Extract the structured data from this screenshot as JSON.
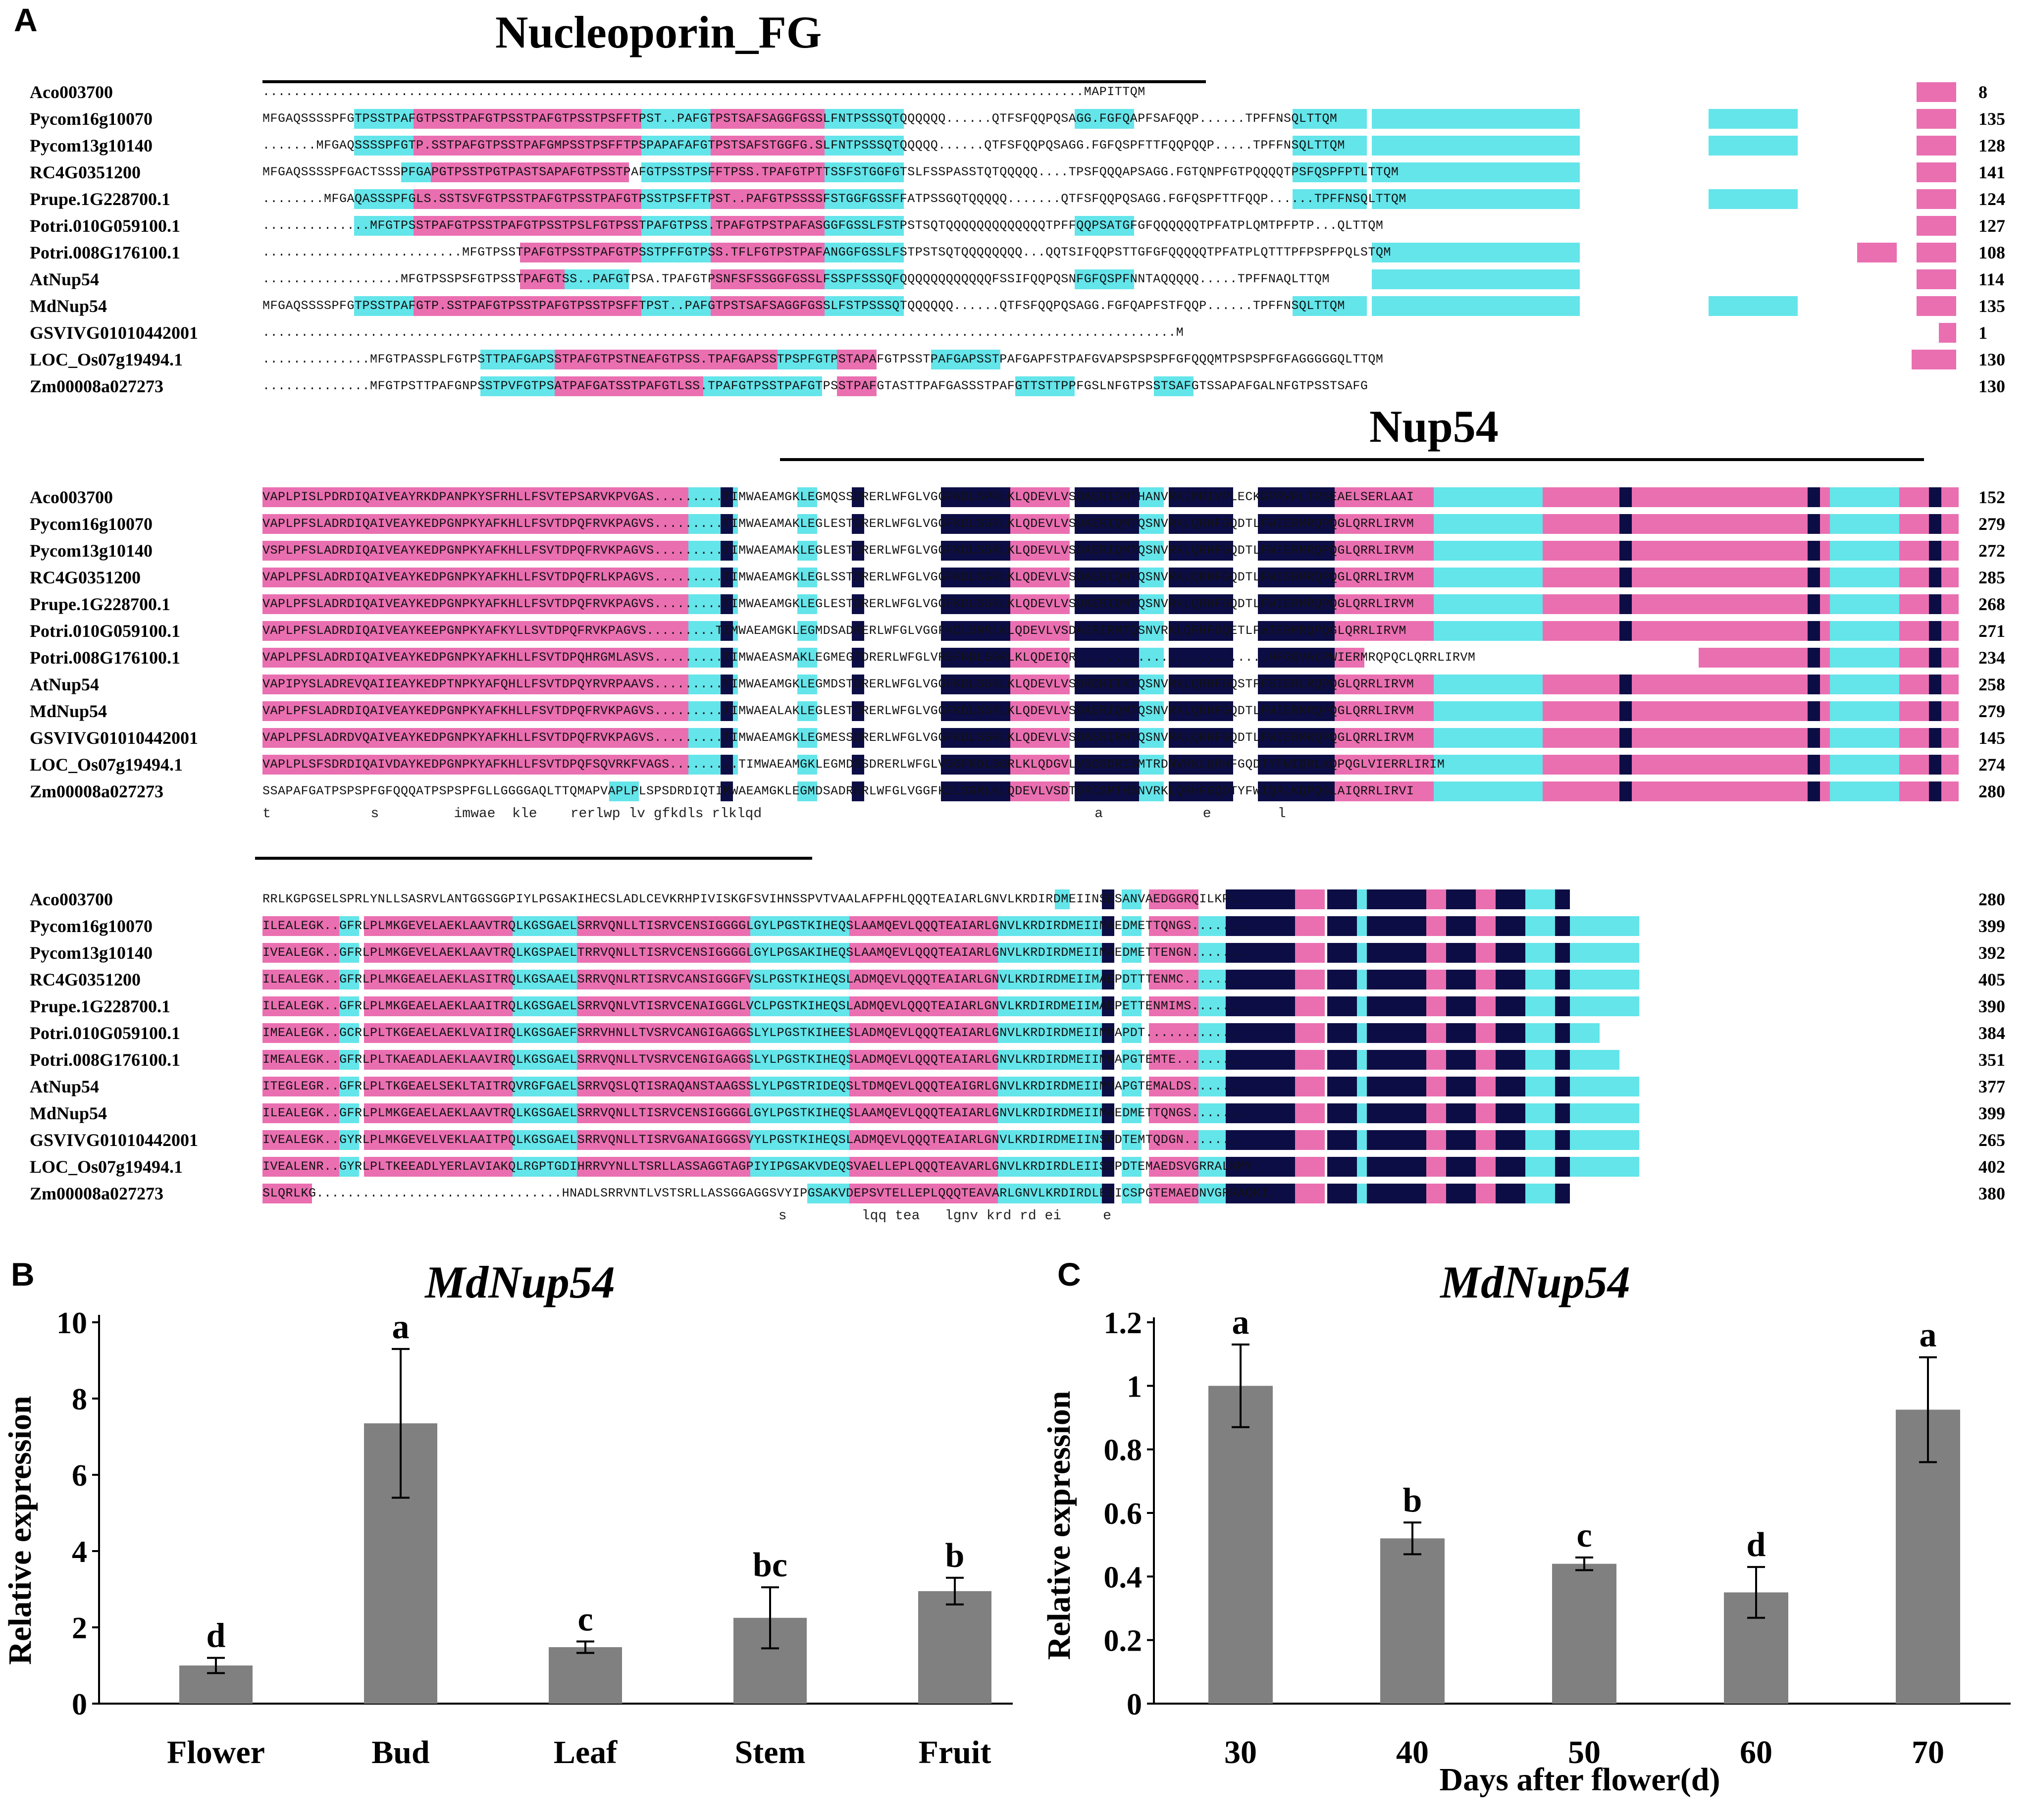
{
  "panels": {
    "a": "A",
    "b": "B",
    "c": "C"
  },
  "alignment": {
    "domain1_title": "Nucleoporin_FG",
    "domain2_title": "Nup54",
    "blocks": [
      {
        "rows": [
          {
            "name": "Aco003700",
            "end": "8",
            "seq": "...........................................................................................................MAPITTQM"
          },
          {
            "name": "Pycom16g10070",
            "end": "135",
            "seq": "MFGAQSSSSPFGTPSSTPAFGTPSSTPAFGTPSSTPAFGTPSSTPSFFTPST..PAFGTPSTSAFSAGGFGSSLFNTPSSSQTQQQQQQ......QTFSFQQPQSAGG.FGFQAPFSAFQQP......TPFFNSQLTTQM"
          },
          {
            "name": "Pycom13g10140",
            "end": "128",
            "seq": ".......MFGAQSSSSPFGTP.SSTPAFGTPSSTPAFGMPSSTPSFFTPSPAPAFAFGTPSTSAFSTGGFG.SLFNTPSSSQTQQQQQ......QTFSFQQPQSAGG.FGFQSPFTTFQQPQQP.....TPFFNSQLTTQM"
          },
          {
            "name": "RC4G0351200",
            "end": "141",
            "seq": "MFGAQSSSSPFGACTSSSPFGAPGTPSSTPGTPASTSAPAFGTPSSTPAFGTPSSTPSFFTPSS.TPAFGTPTTSSFSTGGFGTSLFSSPASSTQTQQQQQ....TPSFQQQAPSAGG.FGTQNPFGTPQQQQTPSFQSPFPTLTTQM"
          },
          {
            "name": "Prupe.1G228700.1",
            "end": "124",
            "seq": "........MFGAQASSSPFGLS.SSTSVFGTPSSTPAFGTPSSTPAFGTPSSTPSFFTPST..PAFGTPSSSSFSTGGFGSSFFATPSSGQTQQQQQ.......QTFSFQQPQSAGG.FGFQSPFTTFQQP......TPFFNSQLTTQM"
          },
          {
            "name": "Potri.010G059100.1",
            "end": "127",
            "seq": "..............MFGTPSSTPAFGTPSSTPAFGTPSSTPSLFGTPSSTPAFGTPSS.TPAFGTPSTPAFASGGFGSSLFSTPSTSQTQQQQQQQQQQQQQTPFFQQPSATGFGFQQQQQQTPFATPLQMTPFPTP...QLTTQM"
          },
          {
            "name": "Potri.008G176100.1",
            "end": "108",
            "seq": "..........................MFGTPSSTPAFGTPSSTPAFGTPSSTPFFGTPSS.TFLFGTPSTPAFANGGFGSSLFSTPSTSQTQQQQQQQQ...QQTSIFQQPSTTGFGFQQQQQTPFATPLQTTTPFPSPFPQLSTQM"
          },
          {
            "name": "AtNup54",
            "end": "114",
            "seq": "..................MFGTPSSPSFGTPSSTPAFGTSS..PAFGTPSA.TPAFGTPSNFSFSSGGFGSSLFSSPFSSSQFQQQQQQQQQQQQFSSIFQQPQSNFGFQSPFNNTAQQQQQ.....TPFFNAQLTTQM"
          },
          {
            "name": "MdNup54",
            "end": "135",
            "seq": "MFGAQSSSSPFGTPSSTPAFGTP.SSTPAFGTPSSTPAFGTPSSTPSFFTPST..PAFGTPSTSAFSAGGFGSSLFSTPSSSQTQQQQQQ......QTFSFQQPQSAGG.FGFQAPFSTFQQP......TPFFNSQLTTQM"
          },
          {
            "name": "GSVIVG01010442001",
            "end": "1",
            "seq": ".......................................................................................................................M"
          },
          {
            "name": "LOC_Os07g19494.1",
            "end": "130",
            "seq": "..............MFGTPASSPLFGTPSTTPAFGAPSSTPAFGTPSTNEAFGTPSS.TPAFGAPSSTPSPFGTPSTAPAFGTPSSTPAFGAPSSTPAFGAPFSTPAFGVAPSPSPSPFGFQQQMTPSPSPFGFAGGGGGQLTTQM"
          },
          {
            "name": "Zm00008a027273",
            "end": "130",
            "seq": "..............MFGTPSTTPAFGNPSSTPVFGTPSATPAFGATSSTPAFGTLSS.TPAFGTPSSTPAFGTPSSTPAFGTASTTPAFGASSSTPAFGTTSTTPPFGSLNFGTPSSTSAFGTSSAPAFGALNFGTPSSTSAFG"
          }
        ],
        "consensus": ""
      },
      {
        "rows": [
          {
            "name": "Aco003700",
            "end": "152",
            "seq": "VAPLPISLPDRDIQAIVEAYRKDPANPKYSFRHLLFSVTEPSARVKPVGAS.........TIMWAEAMGKLEGMQSSDRERLWFGLVGGFKDLSPRLKLQDEVLVSDAERISMTHANVRKIMRIVPLECKGPRVPLTRSEAELSERLAAI"
          },
          {
            "name": "Pycom16g10070",
            "end": "279",
            "seq": "VAPLPFSLADRDIQAIVEAYKEDPGNPKYAFKHLLFSVTDPQFRVKPAGVS.........TIMWAEAMAKLEGLESTDRERLWFGLVGGFKDLSGRLKLQDEVLVSDAERIQMTQSNVRKLQRHFGQDTLFWIERMRQPQGLQRRLIRVM"
          },
          {
            "name": "Pycom13g10140",
            "end": "272",
            "seq": "VSPLPFSLADRDIQAIVEAYKEDPGNPKYAFKHLLFSVTDPQFRVKPAGVS.........TIMWAEAMAKLEGLESTDRERLWFGLVGGFKDLSGRLKLQDEVLVSDAERIQMTQSNVRKLQRHFGQDTLFWIERMRQPQGLQRRLIRVM"
          },
          {
            "name": "RC4G0351200",
            "end": "285",
            "seq": "VAPLPFSLADRDIQAIVEAYKEDPGNPKYAFKHLLFSVTDPQFRLKPAGVS.........TIMWAEAMGKLEGLSSTDRERLWFGLVGGFKDLSGRLKLQDEVLVSDAERIQMTQSNVRKLQRHFGQDTLFWIERMRQPQGLQRRLIRVM"
          },
          {
            "name": "Prupe.1G228700.1",
            "end": "268",
            "seq": "VAPLPFSLADRDIQAIVEAYKEDPGNPKYAFKHLLFSVTDPQFRVKPAGVS.........TIMWAEAMGKLEGLESTDRERLWFGLVGGFKDLSGRLKLQDEVLVSDAERIQMTQSNVRKLQRHFGQDTLFWIERMRQPQGLQRRLIRVM"
          },
          {
            "name": "Potri.010G059100.1",
            "end": "271",
            "seq": "VAPLPFSLADRDIQAIVEAYKEEPGNPKYAFKYLLSVTDPQFRVKPAGVS.........TIMWAEAMGKLEGMDSADRERLWFGLVGGFKDLSNRLKLQDEVLVSDAERIRMTQSNVRKLQRHFGQETLFWIERMRQPQGLQRRLIRVM"
          },
          {
            "name": "Potri.008G176100.1",
            "end": "234",
            "seq": "VAPLPFSLADRDIQAIVEAYKEDPGNPKYAFKHLLFSVTDPQHRGMLASVS.........TIMWAEASMAKLEGMEGTDRERLWFGLVRGFKDLSGRLKLQDEIQR.........................HFGQVALPWIERMRQPQCLQRRLIRVM"
          },
          {
            "name": "AtNup54",
            "end": "258",
            "seq": "VAPIPYSLADREVQAIIEAYKEDPTNPKYAFQHLLFSVTDPQYRVRPAAVS.........TIMWAEAMGKLEGMDSTDRERLWFGLVGGFKDLSGRLKLQDEVLVSDRDRITKTQSNVRKLQRHFGQSTFFSIERLRQPQGLQRRLIRVM"
          },
          {
            "name": "MdNup54",
            "end": "279",
            "seq": "VAPLPFSLADRDIQAIVEAYKEDPGNPKYAFKHLLFSVTDPQFRVKPAGVS.........TIMWAEALAKLEGLESTDRERLWFGLVGGFKDLSGRLKLQDEVLVSDAERIQMTQSNVRKLQRHFGQDTLFWIERMRQPQGLQRRLIRVM"
          },
          {
            "name": "GSVIVG01010442001",
            "end": "145",
            "seq": "VAPLPFSLADRDVQAIVEAYKEDPGNPKYAFKHLLFSVTDPQFRVKPAGVS.........TIMWAEAMGKLEGMESSDRERLWFGLVGGFKDLSGRLKLQDEVLVSDAERIRMTQSNVRKLQRHFGQDTLFWIERMRQPQGLQRRLIRVM"
          },
          {
            "name": "LOC_Os07g19494.1",
            "end": "274",
            "seq": "VAPLPLSFSDRDIQAIVDAYKEDPGNPKYAFKHLLFSVTDPQFSQVRKFVAGS.........TIMWAEAMGKLEGMDSSDRERLWFGLVGGFKDLSGRLKLQDGVLVSDSDRISMTRDNVRKLQRHFGQDTYFWIQRLKQPQGLVIERRLIRIM"
          },
          {
            "name": "Zm00008a027273",
            "end": "280",
            "seq": "SSAPAFGATPSPSPFGFQQQATPSPSPFGLLGGGGAQLTTQMAPVAPLPLSPSDRDIQTIMWAEAMGKLEGMDSADRERLWFGLVGGFKDLSGRLKLQDEVLVSDTDRISMTHSNVRKLQRHFGQDTYFWIQRLKQPQGLAIQRRLIRVI"
          }
        ],
        "consensus": "t            s         imwae  kle    rerlwp lv gfkdls rlklqd                                        a            e        l"
      },
      {
        "rows": [
          {
            "name": "Aco003700",
            "end": "280",
            "seq": "RRLKGPGSELSPRLYNLLSASRVLANTGGSGGPIYLPGSAKIHECSLADLCEVKRHPIVISKGFSVIHNSSPVTVAALAFPFHLQQQTEAIARLGNVLKRDIRDMEIINSESANVAEDGGRQILKP.."
          },
          {
            "name": "Pycom16g10070",
            "end": "399",
            "seq": "ILEALEGK..GFRLPLMKGEVELAEKLAAVTRQLKGSGAELSRRVQNLLTISRVCENSIGGGGLGYLPGSTKIHEQSLAAMQEVLQQQTEAIARLGNVLKRDIRDMEIIMAEDMETTQNGS......."
          },
          {
            "name": "Pycom13g10140",
            "end": "392",
            "seq": "IVEALEGK..GFRLPLMKGEVELAEKLAAVTRQLKGSPAELTRRVQNLLTISRVCENSIGGGGLGYLPGSAKIHEQSLAAMQEVLQQQTEAIARLGNVLKRDIRDMEIIMAEDMETTENGN......."
          },
          {
            "name": "RC4G0351200",
            "end": "405",
            "seq": "ILEALEGK..GFRLPLMKGEAELAEKLASITRQLKGSAAELSRRVQNLRTISRVCANSIGGGFVSLPGSTKIHEQSLADMQEVLQQQTEAIARLGNVLKRDIRDMEIIMAEPDTTTENMC......."
          },
          {
            "name": "Prupe.1G228700.1",
            "end": "390",
            "seq": "ILEALEGK..GFRLPLMKGEAELAEKLAAITRQLKGSGAELSRRVQNLVTISRVCENAIGGGLVCLPGSTKIHEQSLADMQEVLQQQTEAIARLGNVLKRDIRDMEIIMAEPETTENMIMS......"
          },
          {
            "name": "Potri.010G059100.1",
            "end": "384",
            "seq": "IMEALEGK..GCRLPLTKGEAELAEKLVAIIRQLKGSGAEFSRRVHNLLTVSRVCANGIGAGGSLYLPGSTKIHEESLADMQEVLQQQTEAIARLGNVLKRDIRDMEIIMMAPDT............"
          },
          {
            "name": "Potri.008G176100.1",
            "end": "351",
            "seq": "IMEALEGK..GFRLPLTKAEADLAEKLAAVIRQLKGSGAELSRRVQNLLTVSRVCENGIGAGGSLYLPGSTKIHEQSLADMQEVLQQQTEAIARLGNVLKRDIRDMEIIMMAPGTEMTE........"
          },
          {
            "name": "AtNup54",
            "end": "377",
            "seq": "ITEGLEGR..GFRLPLTKGEAELSEKLTAITRQVRGFGAELSRRVQSLQTISRAQANSTAAGSSLYLPGSTRIDEQSLTDMQEVLQQQTEAIGRLGNVLKRDIRDMEIIMVAPGTEMALDS......"
          },
          {
            "name": "MdNup54",
            "end": "399",
            "seq": "ILEALEGK..GFRLPLMKGEAELAEKLAAVTRQLKGSGAELSRRVQNLLTISRVCENSIGGGGLGYLPGSTKIHEQSLAAMQEVLQQQTEAIARLGNVLKRDIRDMEIIMAEDMETTQNGS......."
          },
          {
            "name": "GSVIVG01010442001",
            "end": "265",
            "seq": "IVEALEGK..GYRLPLMKGEVELVEKLAAITPQLKGSGAELSRRVQNLLTISRVGANAIGGGSVYLPGSTKIHEQSLADMQEVLQQQTEAIARLGNVLKRDIRDMEIINSPDTEMTQDGN......."
          },
          {
            "name": "LOC_Os07g19494.1",
            "end": "402",
            "seq": "IVEALENR..GYRLPLTKEEADLYERLAVIAKQLRGPTGDIHRRVYNLLTSRLLASSAGGTAGPIYIPGSAKVDEQSVAELLEPLQQQTEAVARLGNVLKRDIRDLEIISSPDTEMAEDSVGRRALKMY"
          },
          {
            "name": "Zm00008a027273",
            "end": "380",
            "seq": "SLQRLKG................................HNADLSRRVNTLVSTSRLLASSGGAGGSVYIPGSAKVDEPSVTELLEPLQQQTEAVARLGNVLKRDIRDLEIICSPGTEMAEDNVGRRAQKI."
          }
        ],
        "consensus": "                                                              s         lqq tea   lgnv krd rd ei     e"
      }
    ]
  },
  "chart_data": [
    {
      "type": "bar",
      "title": "MdNup54",
      "xlabel": "",
      "ylabel": "Relative expression",
      "categories": [
        "Flower",
        "Bud",
        "Leaf",
        "Stem",
        "Fruit"
      ],
      "values": [
        1.0,
        7.35,
        1.48,
        2.25,
        2.95
      ],
      "errors": [
        0.2,
        1.95,
        0.15,
        0.8,
        0.35
      ],
      "significance": [
        "d",
        "a",
        "c",
        "bc",
        "b"
      ],
      "ylim": [
        0,
        10
      ],
      "yticks": [
        "0",
        "2",
        "4",
        "6",
        "8",
        "10"
      ]
    },
    {
      "type": "bar",
      "title": "MdNup54",
      "xlabel": "Days after flower(d)",
      "ylabel": "Relative expression",
      "categories": [
        "30",
        "40",
        "50",
        "60",
        "70"
      ],
      "values": [
        1.0,
        0.52,
        0.44,
        0.35,
        0.925
      ],
      "errors": [
        0.13,
        0.05,
        0.02,
        0.08,
        0.165
      ],
      "significance": [
        "a",
        "b",
        "c",
        "d",
        "a"
      ],
      "ylim": [
        0,
        1.2
      ],
      "yticks": [
        "0",
        "0.2",
        "0.4",
        "0.6",
        "0.8",
        "1",
        "1.2"
      ]
    }
  ]
}
